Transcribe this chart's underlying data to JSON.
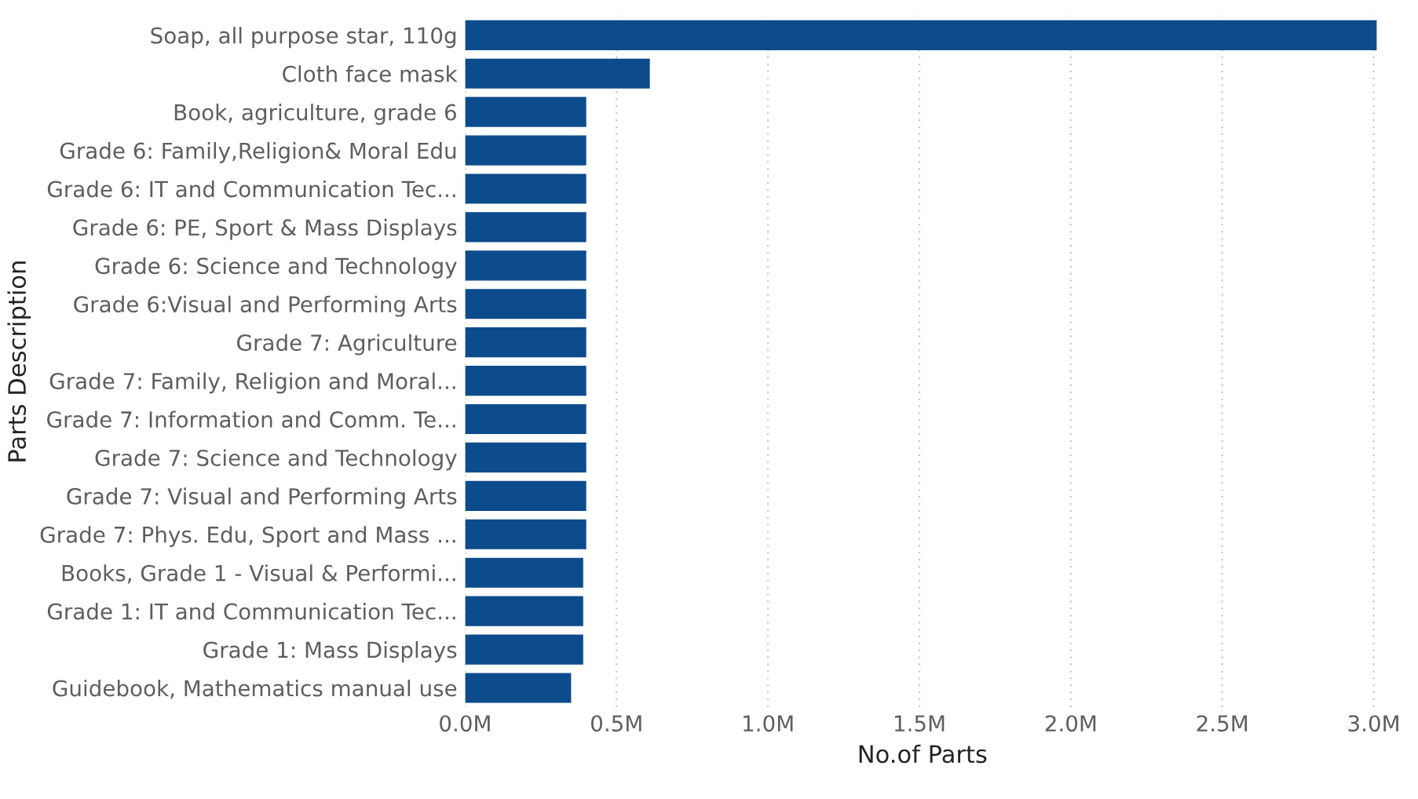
{
  "chart_data": {
    "type": "bar",
    "orientation": "horizontal",
    "xlabel": "No.of Parts",
    "ylabel": "Parts Description",
    "categories": [
      "Soap, all purpose star, 110g",
      "Cloth face mask",
      "Book, agriculture, grade 6",
      "Grade 6: Family,Religion& Moral Edu",
      "Grade 6: IT and Communication Tec...",
      "Grade 6: PE, Sport & Mass Displays",
      "Grade 6: Science and Technology",
      "Grade 6:Visual and Performing Arts",
      "Grade 7: Agriculture",
      "Grade 7: Family, Religion and Moral...",
      "Grade 7: Information and Comm. Te...",
      "Grade 7: Science and Technology",
      "Grade 7: Visual and Performing Arts",
      "Grade 7: Phys. Edu, Sport and Mass ...",
      "Books, Grade 1 - Visual & Performi...",
      "Grade 1: IT and Communication Tec...",
      "Grade 1: Mass Displays",
      "Guidebook, Mathematics manual use"
    ],
    "values": [
      3.01,
      0.61,
      0.4,
      0.4,
      0.4,
      0.4,
      0.4,
      0.4,
      0.4,
      0.4,
      0.4,
      0.4,
      0.4,
      0.4,
      0.39,
      0.39,
      0.39,
      0.35
    ],
    "color": "#0d4c8c",
    "xlim": [
      0,
      3.02
    ],
    "xticks": [
      {
        "value": 0,
        "label": "0.0M"
      },
      {
        "value": 0.5,
        "label": "0.5M"
      },
      {
        "value": 1,
        "label": "1.0M"
      },
      {
        "value": 1.5,
        "label": "1.5M"
      },
      {
        "value": 2,
        "label": "2.0M"
      },
      {
        "value": 2.5,
        "label": "2.5M"
      },
      {
        "value": 3,
        "label": "3.0M"
      }
    ],
    "grid": "x"
  }
}
